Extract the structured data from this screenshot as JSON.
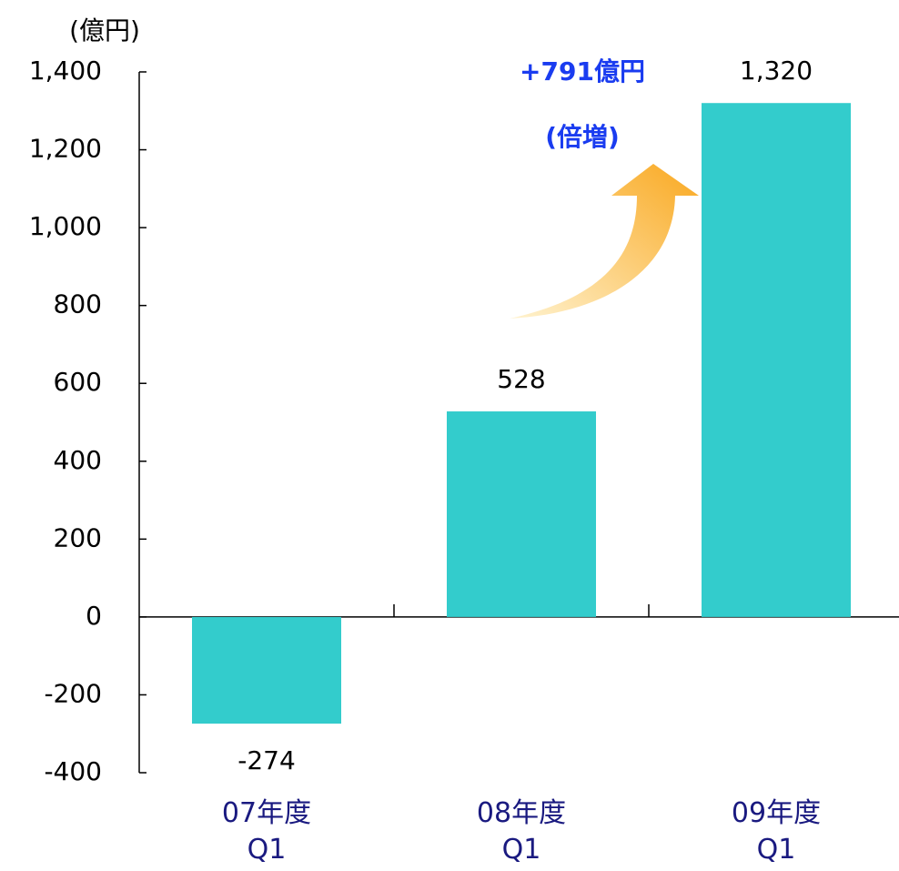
{
  "chart_data": {
    "type": "bar",
    "unit_label": "(億円)",
    "categories": [
      "07年度\nQ1",
      "08年度\nQ1",
      "09年度\nQ1"
    ],
    "values": [
      -274,
      528,
      1320
    ],
    "value_labels": [
      "-274",
      "528",
      "1,320"
    ],
    "color": "#33cccc",
    "ylim": [
      -400,
      1400
    ],
    "yticks": [
      -400,
      -200,
      0,
      200,
      400,
      600,
      800,
      {
        "value": 1000,
        "label": "1,000"
      },
      {
        "value": 1200,
        "label": "1,200"
      },
      {
        "value": 1400,
        "label": "1,400"
      }
    ],
    "annotations": [
      "+791億円",
      "(倍増)"
    ]
  }
}
